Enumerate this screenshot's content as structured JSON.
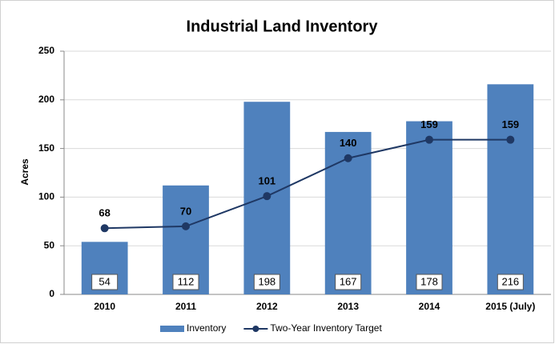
{
  "chart_data": {
    "type": "combo",
    "title": "Industrial Land Inventory",
    "y_label": "Acres",
    "categories": [
      "2010",
      "2011",
      "2012",
      "2013",
      "2014",
      "2015 (July)"
    ],
    "series": [
      {
        "name": "Inventory",
        "type": "bar",
        "color": "#4f81bd",
        "values": [
          54,
          112,
          198,
          167,
          178,
          216
        ]
      },
      {
        "name": "Two-Year Inventory Target",
        "type": "line",
        "color": "#1f3864",
        "values": [
          68,
          70,
          101,
          140,
          159,
          159
        ]
      }
    ],
    "ylim": [
      0,
      250
    ],
    "yticks": [
      0,
      50,
      100,
      150,
      200,
      250
    ],
    "grid": true,
    "legend": "bottom"
  }
}
